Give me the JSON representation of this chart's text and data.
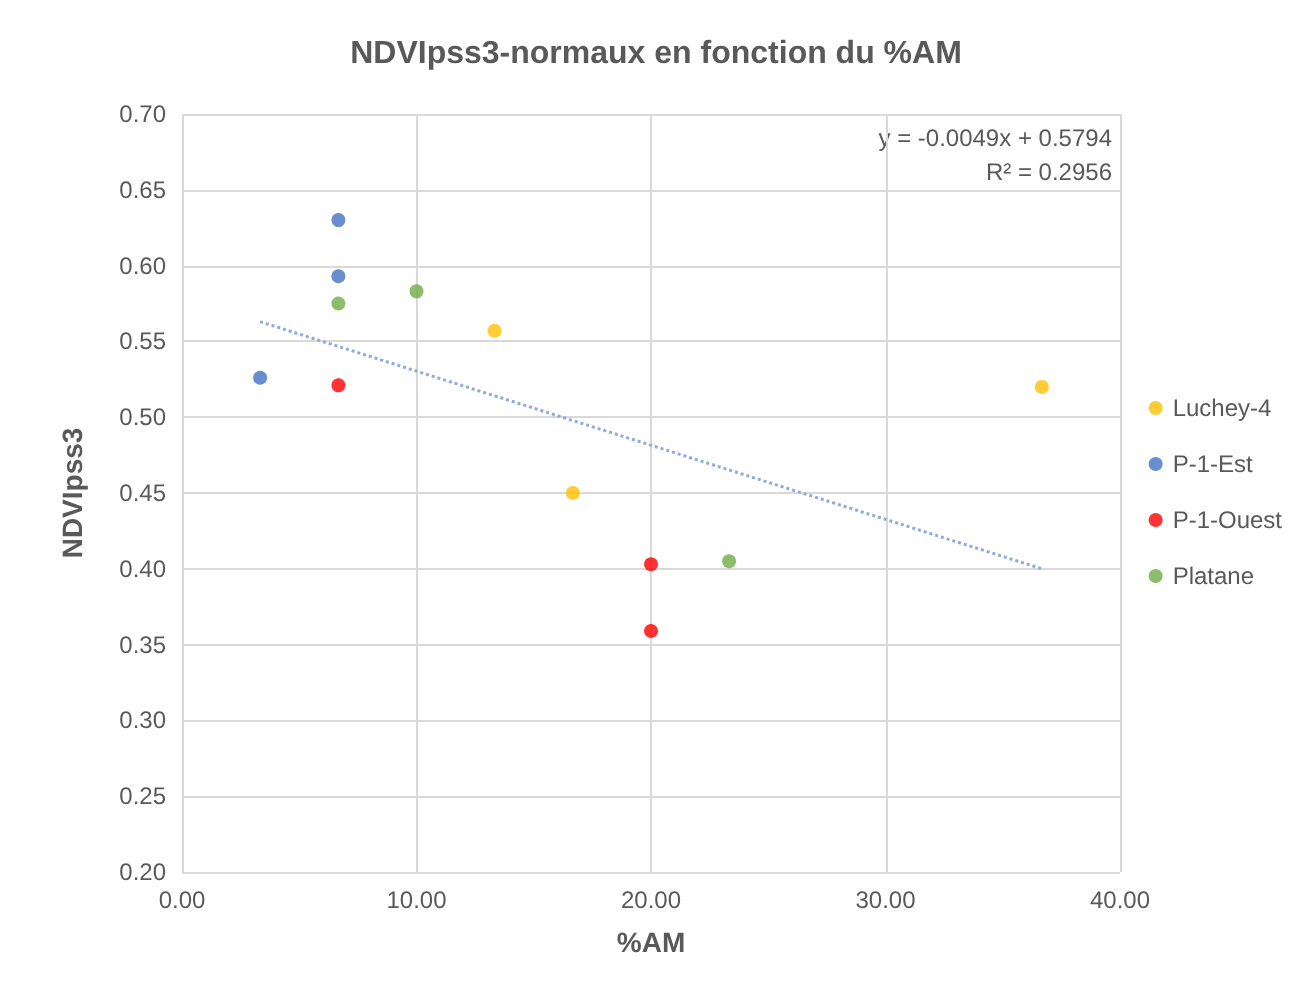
{
  "chart_data": {
    "type": "scatter",
    "title": "NDVIpss3-normaux en fonction du %AM",
    "xlabel": "%AM",
    "ylabel": "NDVIpss3",
    "annotations": [
      "y = -0.0049x + 0.5794",
      "R² = 0.2956"
    ],
    "series": [
      {
        "name": "Luchey-4",
        "color": "#ffc000",
        "x": [
          13.33,
          16.67,
          36.67
        ],
        "values": [
          0.557,
          0.45,
          0.52
        ]
      },
      {
        "name": "P-1-Est",
        "color": "#4472c4",
        "x": [
          3.33,
          6.67,
          6.67
        ],
        "values": [
          0.526,
          0.63,
          0.593
        ]
      },
      {
        "name": "P-1-Ouest",
        "color": "#ff0000",
        "x": [
          6.67,
          20,
          20
        ],
        "values": [
          0.521,
          0.403,
          0.359
        ]
      },
      {
        "name": "Platane",
        "color": "#70ad47",
        "x": [
          6.67,
          10,
          23.33
        ],
        "values": [
          0.575,
          0.583,
          0.405
        ]
      },
      {
        "type": "line",
        "color": "#8faadc",
        "x": [
          3.33,
          36.67
        ],
        "values": [
          0.563,
          0.4
        ],
        "line_style": "dotted",
        "marker": "none"
      }
    ],
    "xlim": [
      0,
      40
    ],
    "xticks": [
      {
        "value": 0,
        "label": "0.00"
      },
      {
        "value": 10,
        "label": "10.00"
      },
      {
        "value": 20,
        "label": "20.00"
      },
      {
        "value": 30,
        "label": "30.00"
      },
      {
        "value": 40,
        "label": "40.00"
      }
    ],
    "ylim": [
      0.2,
      0.7
    ],
    "yticks": [
      {
        "value": 0.2,
        "label": "0.20"
      },
      {
        "value": 0.25,
        "label": "0.25"
      },
      {
        "value": 0.3,
        "label": "0.30"
      },
      {
        "value": 0.35,
        "label": "0.35"
      },
      {
        "value": 0.4,
        "label": "0.40"
      },
      {
        "value": 0.45,
        "label": "0.45"
      },
      {
        "value": 0.5,
        "label": "0.50"
      },
      {
        "value": 0.55,
        "label": "0.55"
      },
      {
        "value": 0.6,
        "label": "0.60"
      },
      {
        "value": 0.65,
        "label": "0.65"
      },
      {
        "value": 0.7,
        "label": "0.70"
      }
    ],
    "grid": true,
    "legend": "right",
    "marker": "circle"
  }
}
